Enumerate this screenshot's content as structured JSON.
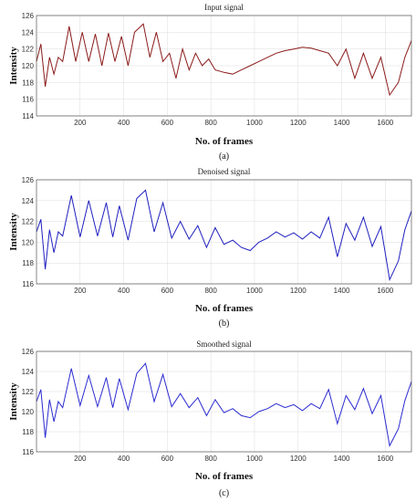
{
  "chart_data": [
    {
      "type": "line",
      "panel": "a",
      "title": "Input signal",
      "xlabel": "No. of frames",
      "ylabel": "Intensity",
      "caption": "(a)",
      "xlim": [
        0,
        1720
      ],
      "ylim": [
        114,
        126
      ],
      "xticks": [
        200,
        400,
        600,
        800,
        1000,
        1200,
        1400,
        1600
      ],
      "yticks": [
        114,
        116,
        118,
        120,
        122,
        124,
        126
      ],
      "grid": true,
      "series": [
        {
          "color": "#8b1a1a",
          "x": [
            0,
            20,
            40,
            60,
            80,
            100,
            120,
            150,
            180,
            210,
            240,
            270,
            300,
            330,
            360,
            390,
            420,
            450,
            490,
            520,
            550,
            580,
            610,
            640,
            670,
            700,
            730,
            760,
            790,
            820,
            860,
            900,
            940,
            980,
            1020,
            1060,
            1100,
            1140,
            1180,
            1220,
            1260,
            1300,
            1340,
            1380,
            1420,
            1460,
            1500,
            1540,
            1580,
            1620,
            1660,
            1690,
            1720
          ],
          "y": [
            120.5,
            122.6,
            117.5,
            121,
            119,
            121,
            120.5,
            124.7,
            120.5,
            124,
            120.5,
            123.8,
            120,
            123.9,
            120.5,
            123.5,
            120,
            124,
            125,
            121,
            124,
            120.5,
            121.5,
            118.5,
            122,
            119.5,
            121.5,
            120,
            120.8,
            119.5,
            119.2,
            119,
            119.5,
            120,
            120.5,
            121,
            121.5,
            121.8,
            122,
            122.2,
            122.1,
            121.8,
            121.5,
            120,
            122,
            118.5,
            121.5,
            118.5,
            121,
            116.5,
            118,
            121,
            123
          ]
        }
      ]
    },
    {
      "type": "line",
      "panel": "b",
      "title": "Denoised signal",
      "xlabel": "No. of frames",
      "ylabel": "Intensity",
      "caption": "(b)",
      "xlim": [
        0,
        1720
      ],
      "ylim": [
        116,
        126
      ],
      "xticks": [
        200,
        400,
        600,
        800,
        1000,
        1200,
        1400,
        1600
      ],
      "yticks": [
        116,
        118,
        120,
        122,
        124,
        126
      ],
      "grid": true,
      "series": [
        {
          "color": "#1f1fbf",
          "x": [
            0,
            20,
            40,
            60,
            80,
            100,
            120,
            160,
            200,
            240,
            280,
            320,
            350,
            380,
            420,
            460,
            500,
            540,
            580,
            620,
            660,
            700,
            740,
            780,
            820,
            860,
            900,
            940,
            980,
            1020,
            1060,
            1100,
            1140,
            1180,
            1220,
            1260,
            1300,
            1340,
            1380,
            1420,
            1460,
            1500,
            1540,
            1580,
            1620,
            1660,
            1690,
            1720
          ],
          "y": [
            121,
            122.2,
            117.4,
            121.2,
            119,
            121,
            120.6,
            124.5,
            120.5,
            124,
            120.6,
            123.8,
            120.5,
            123.5,
            120.2,
            124.2,
            125,
            121,
            123.8,
            120.4,
            122,
            120.3,
            121.6,
            119.5,
            121.4,
            119.8,
            120.2,
            119.5,
            119.2,
            120,
            120.4,
            121,
            120.5,
            120.9,
            120.3,
            121,
            120.4,
            122.4,
            118.6,
            121.8,
            120.2,
            122.4,
            119.6,
            121.5,
            116.4,
            118.2,
            121.2,
            123
          ]
        }
      ]
    },
    {
      "type": "line",
      "panel": "c",
      "title": "Smoothed signal",
      "xlabel": "No. of frames",
      "ylabel": "Intensity",
      "caption": "(c)",
      "xlim": [
        0,
        1720
      ],
      "ylim": [
        116,
        126
      ],
      "xticks": [
        200,
        400,
        600,
        800,
        1000,
        1200,
        1400,
        1600
      ],
      "yticks": [
        116,
        118,
        120,
        122,
        124,
        126
      ],
      "grid": true,
      "series": [
        {
          "color": "#2a2ad0",
          "x": [
            0,
            20,
            40,
            60,
            80,
            100,
            120,
            160,
            200,
            240,
            280,
            320,
            350,
            380,
            420,
            460,
            500,
            540,
            580,
            620,
            660,
            700,
            740,
            780,
            820,
            860,
            900,
            940,
            980,
            1020,
            1060,
            1100,
            1140,
            1180,
            1220,
            1260,
            1300,
            1340,
            1380,
            1420,
            1460,
            1500,
            1540,
            1580,
            1620,
            1660,
            1690,
            1720
          ],
          "y": [
            121,
            122.2,
            117.4,
            121.2,
            119,
            121,
            120.4,
            124.3,
            120.6,
            123.6,
            120.5,
            123.4,
            120.4,
            123.3,
            120.2,
            123.8,
            124.8,
            121,
            123.7,
            120.5,
            121.8,
            120.4,
            121.4,
            119.6,
            121.2,
            119.9,
            120.3,
            119.6,
            119.4,
            120,
            120.3,
            120.8,
            120.4,
            120.7,
            120.1,
            120.8,
            120.3,
            122.2,
            118.8,
            121.6,
            120.2,
            122.3,
            119.8,
            121.6,
            116.6,
            118.3,
            121.1,
            123
          ]
        }
      ]
    }
  ]
}
